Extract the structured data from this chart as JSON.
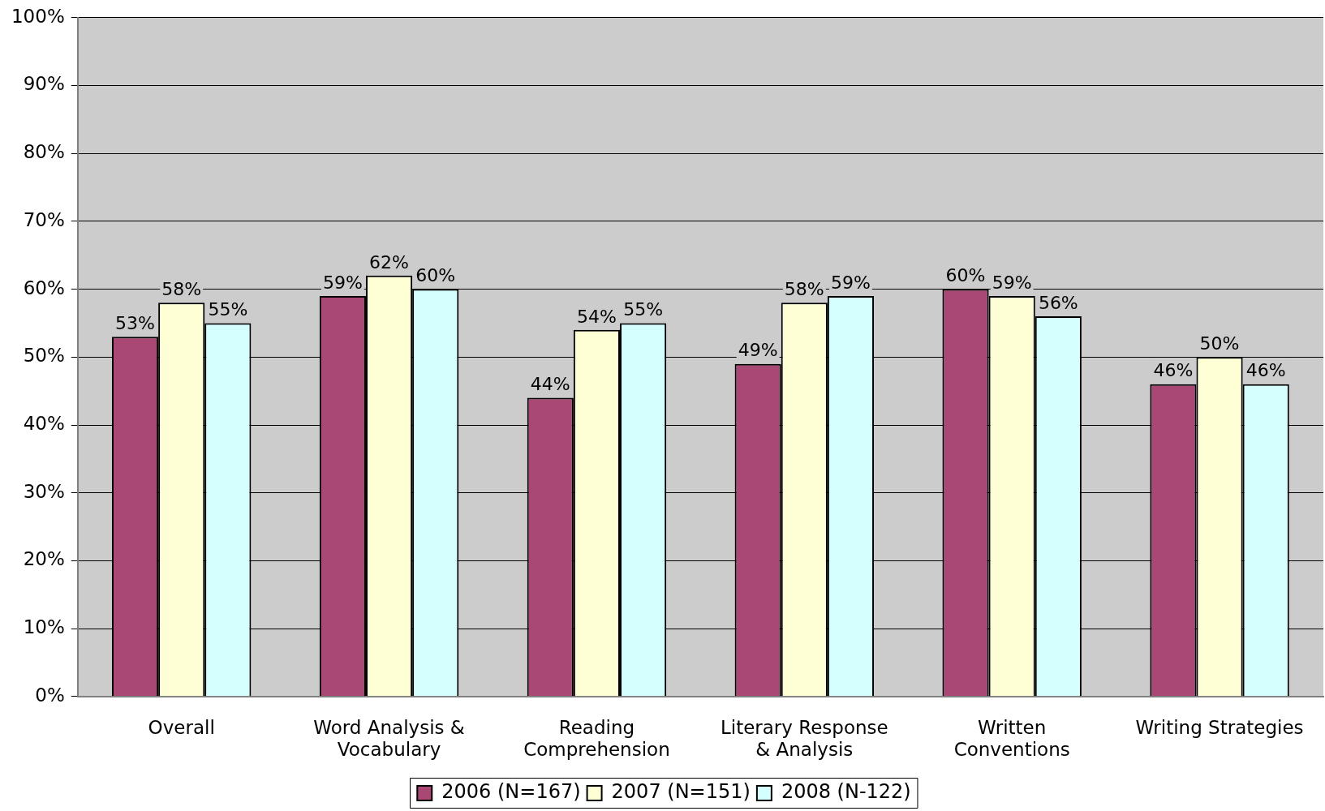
{
  "chart_data": {
    "type": "bar",
    "categories": [
      "Overall",
      "Word Analysis & Vocabulary",
      "Reading Comprehension",
      "Literary Response & Analysis",
      "Written Conventions",
      "Writing Strategies"
    ],
    "series": [
      {
        "name": "2006 (N=167)",
        "color": "#a94874",
        "values": [
          53,
          59,
          44,
          49,
          60,
          46
        ],
        "value_labels": [
          "53%",
          "59%",
          "44%",
          "49%",
          "60%",
          "46%"
        ]
      },
      {
        "name": "2007 (N=151)",
        "color": "#ffffd5",
        "values": [
          58,
          62,
          54,
          58,
          59,
          50
        ],
        "value_labels": [
          "58%",
          "62%",
          "54%",
          "58%",
          "59%",
          "50%"
        ]
      },
      {
        "name": "2008 (N-122)",
        "color": "#d5ffff",
        "values": [
          55,
          60,
          55,
          59,
          56,
          46
        ],
        "value_labels": [
          "55%",
          "60%",
          "55%",
          "59%",
          "56%",
          "46%"
        ]
      }
    ],
    "ylim": [
      0,
      100
    ],
    "yticks": [
      {
        "value": 0,
        "label": "0%"
      },
      {
        "value": 10,
        "label": "10%"
      },
      {
        "value": 20,
        "label": "20%"
      },
      {
        "value": 30,
        "label": "30%"
      },
      {
        "value": 40,
        "label": "40%"
      },
      {
        "value": 50,
        "label": "50%"
      },
      {
        "value": 60,
        "label": "60%"
      },
      {
        "value": 70,
        "label": "70%"
      },
      {
        "value": 80,
        "label": "80%"
      },
      {
        "value": 90,
        "label": "90%"
      },
      {
        "value": 100,
        "label": "100%"
      }
    ],
    "grid": "y",
    "legend": "bottom"
  }
}
